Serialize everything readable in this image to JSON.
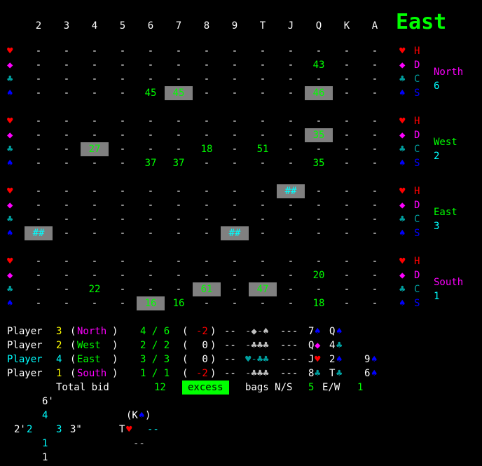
{
  "title": "East",
  "columns": [
    "2",
    "3",
    "4",
    "5",
    "6",
    "7",
    "8",
    "9",
    "T",
    "J",
    "Q",
    "K",
    "A"
  ],
  "colors": {
    "hearts": "#ff0000",
    "diamonds": "#ff00ff",
    "clubs": "#00a0a0",
    "spades": "#0000ff",
    "value": "#00ff00",
    "highlight": "#808080"
  },
  "suit_symbols": [
    "♥",
    "◆",
    "♣",
    "♠"
  ],
  "suit_letters": [
    "H",
    "D",
    "C",
    "S"
  ],
  "blocks": [
    {
      "player": "North",
      "score": "6",
      "rows": [
        [
          "-",
          "-",
          "-",
          "-",
          "-",
          "-",
          "-",
          "-",
          "-",
          "-",
          "-",
          "-",
          "-"
        ],
        [
          "-",
          "-",
          "-",
          "-",
          "-",
          "-",
          "-",
          "-",
          "-",
          "-",
          "43",
          "-",
          "-"
        ],
        [
          "-",
          "-",
          "-",
          "-",
          "-",
          "-",
          "-",
          "-",
          "-",
          "-",
          "-",
          "-",
          "-"
        ],
        [
          "-",
          "-",
          "-",
          "-",
          "45",
          "45",
          "-",
          "-",
          "-",
          "-",
          "46",
          "-",
          "-"
        ]
      ],
      "highlights": [
        [
          3,
          5
        ],
        [
          3,
          10
        ]
      ]
    },
    {
      "player": "West",
      "score": "2",
      "rows": [
        [
          "-",
          "-",
          "-",
          "-",
          "-",
          "-",
          "-",
          "-",
          "-",
          "-",
          "-",
          "-",
          "-"
        ],
        [
          "-",
          "-",
          "-",
          "-",
          "-",
          "-",
          "-",
          "-",
          "-",
          "-",
          "35",
          "-",
          "-"
        ],
        [
          "-",
          "-",
          "27",
          "-",
          "-",
          "-",
          "18",
          "-",
          "51",
          "-",
          "-",
          "-",
          "-"
        ],
        [
          "-",
          "-",
          "-",
          "-",
          "37",
          "37",
          "-",
          "-",
          "-",
          "-",
          "35",
          "-",
          "-"
        ]
      ],
      "highlights": [
        [
          1,
          10
        ],
        [
          2,
          2
        ]
      ]
    },
    {
      "player": "East",
      "score": "3",
      "rows": [
        [
          "-",
          "-",
          "-",
          "-",
          "-",
          "-",
          "-",
          "-",
          "-",
          "##",
          "-",
          "-",
          "-"
        ],
        [
          "-",
          "-",
          "-",
          "-",
          "-",
          "-",
          "-",
          "-",
          "-",
          "-",
          "-",
          "-",
          "-"
        ],
        [
          "-",
          "-",
          "-",
          "-",
          "-",
          "-",
          "-",
          "-",
          "-",
          "-",
          "-",
          "-",
          "-"
        ],
        [
          "##",
          "-",
          "-",
          "-",
          "-",
          "-",
          "-",
          "##",
          "-",
          "-",
          "-",
          "-",
          "-"
        ]
      ],
      "highlights": [
        [
          0,
          9
        ],
        [
          3,
          0
        ],
        [
          3,
          7
        ]
      ]
    },
    {
      "player": "South",
      "score": "1",
      "rows": [
        [
          "-",
          "-",
          "-",
          "-",
          "-",
          "-",
          "-",
          "-",
          "-",
          "-",
          "-",
          "-",
          "-"
        ],
        [
          "-",
          "-",
          "-",
          "-",
          "-",
          "-",
          "-",
          "-",
          "-",
          "-",
          "20",
          "-",
          "-"
        ],
        [
          "-",
          "-",
          "22",
          "-",
          "-",
          "-",
          "61",
          "-",
          "47",
          "-",
          "-",
          "-",
          "-"
        ],
        [
          "-",
          "-",
          "-",
          "-",
          "16",
          "16",
          "-",
          "-",
          "-",
          "-",
          "18",
          "-",
          "-"
        ]
      ],
      "highlights": [
        [
          2,
          6
        ],
        [
          2,
          8
        ],
        [
          3,
          4
        ]
      ]
    }
  ],
  "player_lines": [
    {
      "label": "Player",
      "num": "3",
      "name": "North",
      "bid": "4 / 6",
      "paren_open": "(",
      "bags": "-2",
      "paren_close": ")",
      "dashes": "--",
      "trick": "-◆-♠",
      "dash2": "---",
      "c1": "7",
      "s1": "♠",
      "c2": "Q",
      "s2": "♠"
    },
    {
      "label": "Player",
      "num": "2",
      "name": "West ",
      "bid": "2 / 2",
      "paren_open": "(",
      "bags": " 0",
      "paren_close": ")",
      "dashes": "--",
      "trick": "-♣♣♣",
      "dash2": "---",
      "c1": "Q",
      "s1": "◆",
      "c2": "4",
      "s2": "♣"
    },
    {
      "label": "Player",
      "num": "4",
      "name": "East ",
      "bid": "3 / 3",
      "paren_open": "(",
      "bags": " 0",
      "paren_close": ")",
      "dashes": "--",
      "trick": "♥-♣♣",
      "dash2": "---",
      "c1": "J",
      "s1": "♥",
      "c2": "2",
      "s2": "♠",
      "c3": "9",
      "s3": "♠"
    },
    {
      "label": "Player",
      "num": "1",
      "name": "South",
      "bid": "1 / 1",
      "paren_open": "(",
      "bags": "-2",
      "paren_close": ")",
      "dashes": "--",
      "trick": "-♣♣♣",
      "dash2": "---",
      "c1": "8",
      "s1": "♣",
      "c2": "T",
      "s2": "♣",
      "c3": "6",
      "s3": "♠"
    }
  ],
  "totals": {
    "label": "Total bid",
    "value": "12",
    "excess": "excess",
    "bags_label": "bags N/S",
    "ns": "5",
    "ew_label": "E/W",
    "ew": "1"
  },
  "table": {
    "top_num": "6'",
    "north_count": "4",
    "center_card": "(K",
    "center_suit": "♠",
    "center_close": ")",
    "west_a": "2'",
    "west_b": "2",
    "east_a": "3",
    "east_b": "3\"",
    "t_card": "T",
    "t_suit": "♥",
    "dash_a": "--",
    "dash_b": "--",
    "south_a": "1",
    "south_b": "1"
  }
}
